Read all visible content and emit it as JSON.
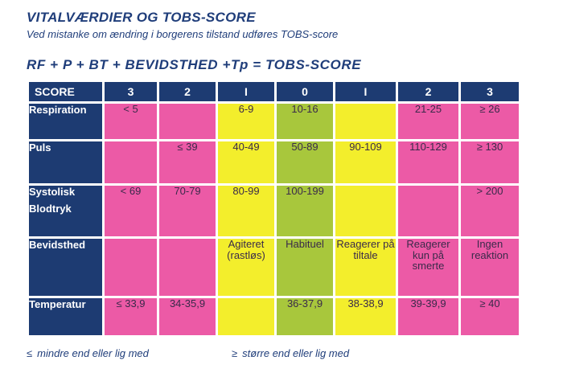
{
  "title": "VITALVÆRDIER OG TOBS-SCORE",
  "subtitle": "Ved mistanke om ændring i borgerens tilstand udføres TOBS-score",
  "formula": "RF + P + BT + BEVIDSTHED +Tp = TOBS-SCORE",
  "colors": {
    "header": "#1d3b72",
    "pink": "#ec5aa6",
    "yellow": "#f3ee2c",
    "green": "#a8c73c"
  },
  "table": {
    "headers": [
      "SCORE",
      "3",
      "2",
      "I",
      "0",
      "I",
      "2",
      "3"
    ],
    "rows": [
      {
        "label": "Respiration",
        "cells": [
          "< 5",
          "",
          "6-9",
          "10-16",
          "",
          "21-25",
          "≥ 26"
        ]
      },
      {
        "label": "Puls",
        "cells": [
          "",
          "≤ 39",
          "40-49",
          "50-89",
          "90-109",
          "110-129",
          "≥ 130"
        ]
      },
      {
        "label": [
          "Systolisk",
          "Blodtryk"
        ],
        "cells": [
          "< 69",
          "70-79",
          "80-99",
          "100-199",
          "",
          "",
          "> 200"
        ]
      },
      {
        "label": "Bevidsthed",
        "cells": [
          "",
          "",
          "Agiteret (rastløs)",
          "Habituel",
          "Reagerer på tiltale",
          "Reagerer kun på smerte",
          "Ingen reaktion"
        ]
      },
      {
        "label": "Temperatur",
        "cells": [
          "≤ 33,9",
          "34-35,9",
          "",
          "36-37,9",
          "38-38,9",
          "39-39,9",
          "≥ 40"
        ]
      }
    ]
  },
  "legend": {
    "le_symbol": "≤",
    "le_text": "mindre end eller lig med",
    "ge_symbol": "≥",
    "ge_text": "større end eller lig med"
  }
}
